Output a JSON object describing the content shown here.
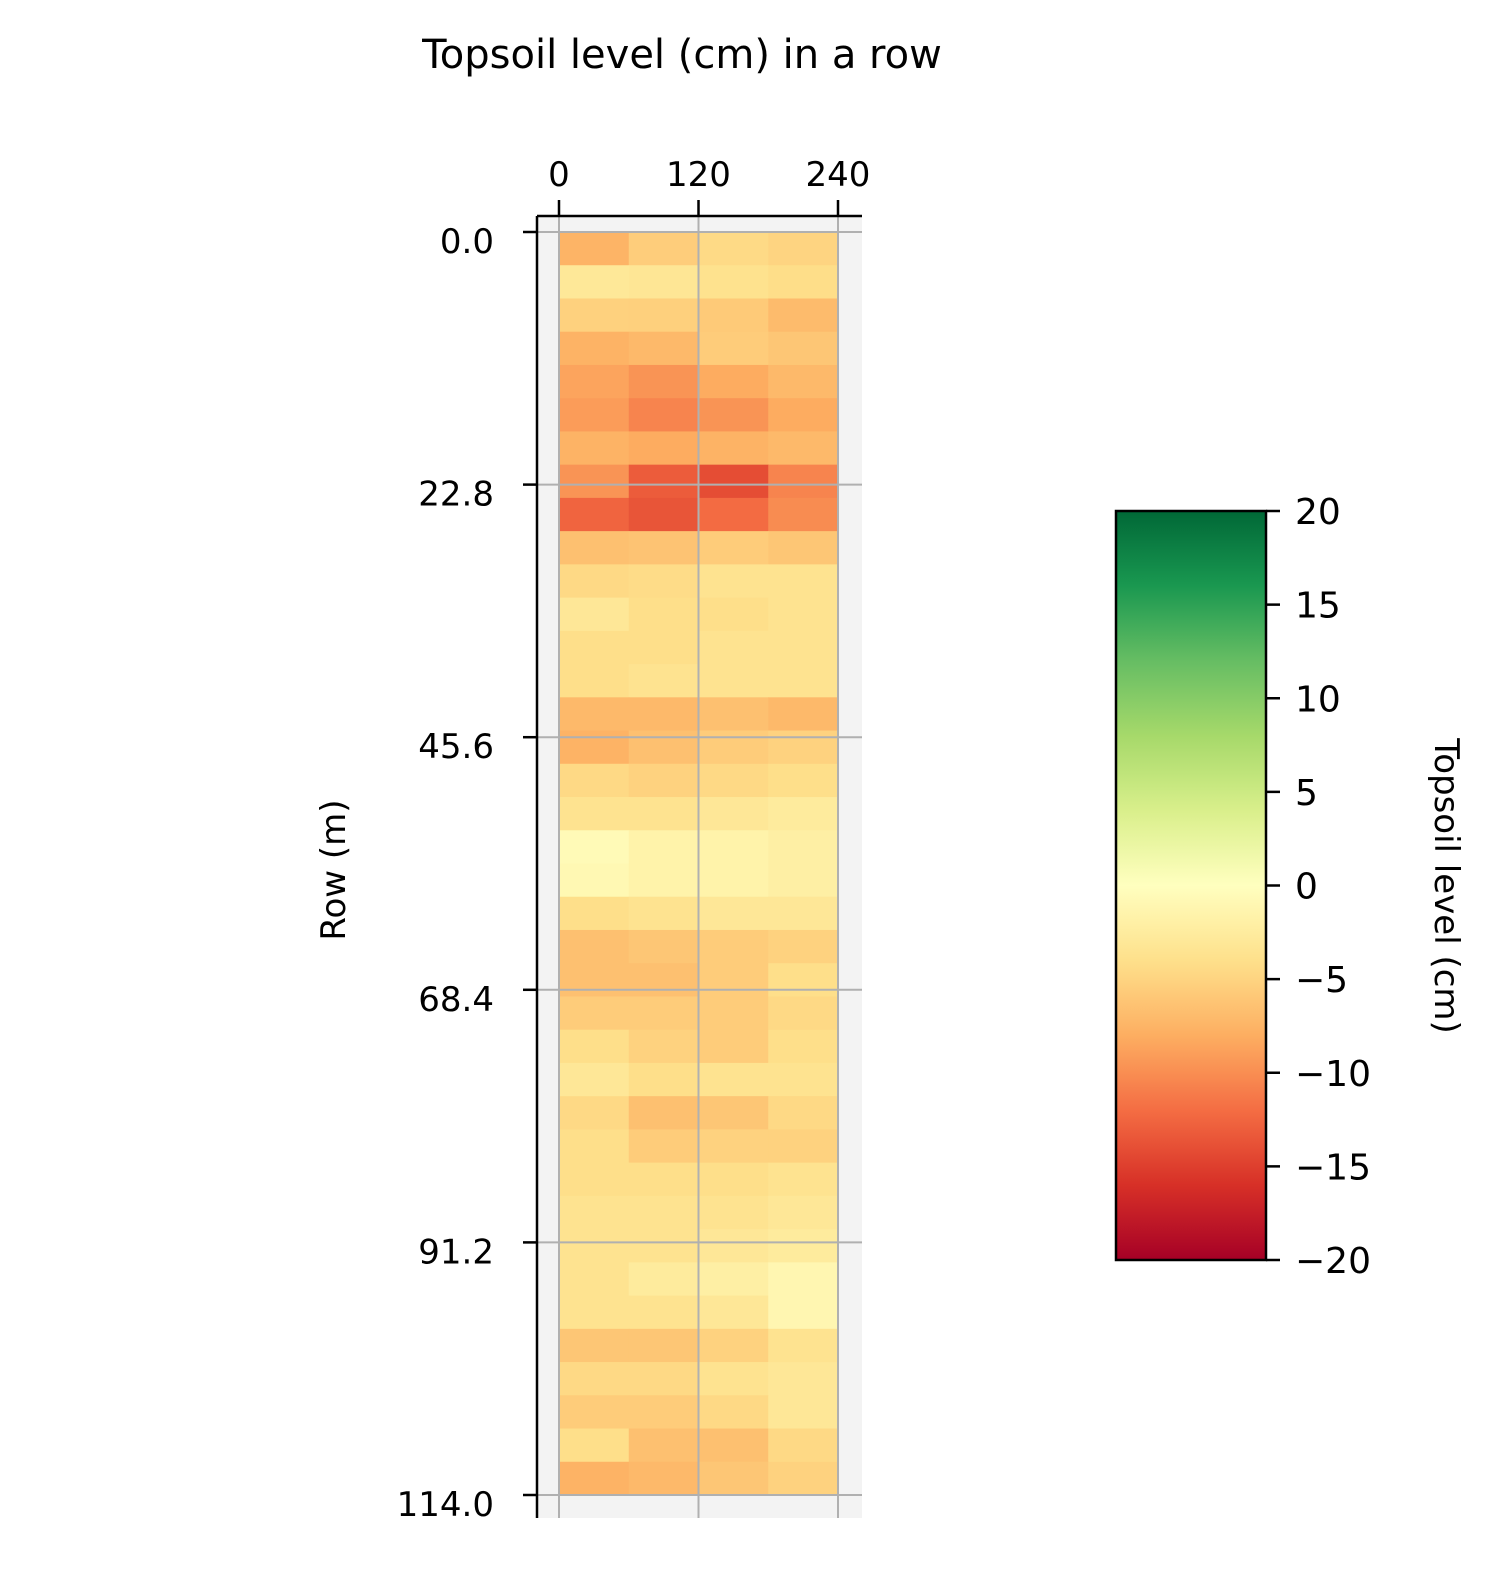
{
  "chart_data": {
    "type": "heatmap",
    "title": "Topsoil level (cm) in a row",
    "ylabel": "Row (m)",
    "x_ticks": [
      "0",
      "120",
      "240"
    ],
    "y_ticks": [
      "0.0",
      "22.8",
      "45.6",
      "68.4",
      "91.2",
      "114.0"
    ],
    "xlim": [
      0,
      240
    ],
    "ylim": [
      0,
      114.0
    ],
    "columns": 4,
    "rows": 38,
    "colormap": "RdYlGn",
    "colorbar": {
      "label": "Topsoil level (cm)",
      "range": [
        -20,
        20
      ],
      "ticks": [
        "20",
        "15",
        "10",
        "5",
        "0",
        "−5",
        "−10",
        "−15",
        "−20"
      ]
    },
    "values": [
      [
        -7.5,
        -5.5,
        -4.5,
        -5.0
      ],
      [
        -3.0,
        -3.2,
        -3.8,
        -4.2
      ],
      [
        -5.2,
        -5.3,
        -5.8,
        -7.0
      ],
      [
        -7.6,
        -7.1,
        -5.6,
        -6.1
      ],
      [
        -8.6,
        -9.6,
        -8.1,
        -7.1
      ],
      [
        -9.1,
        -10.6,
        -9.6,
        -8.1
      ],
      [
        -7.6,
        -8.1,
        -7.6,
        -7.1
      ],
      [
        -9.6,
        -13.1,
        -14.1,
        -10.6
      ],
      [
        -12.6,
        -13.6,
        -12.1,
        -10.1
      ],
      [
        -6.6,
        -6.3,
        -5.6,
        -6.1
      ],
      [
        -4.6,
        -4.3,
        -3.6,
        -3.6
      ],
      [
        -3.1,
        -4.1,
        -4.1,
        -3.6
      ],
      [
        -4.1,
        -4.1,
        -3.6,
        -3.6
      ],
      [
        -4.1,
        -3.6,
        -3.6,
        -3.6
      ],
      [
        -7.1,
        -7.1,
        -6.6,
        -7.1
      ],
      [
        -7.6,
        -6.6,
        -5.6,
        -5.1
      ],
      [
        -4.6,
        -5.1,
        -4.6,
        -4.1
      ],
      [
        -3.6,
        -3.6,
        -3.1,
        -2.6
      ],
      [
        -0.6,
        -1.6,
        -1.6,
        -2.1
      ],
      [
        -0.9,
        -1.6,
        -1.6,
        -2.1
      ],
      [
        -4.1,
        -3.6,
        -3.1,
        -3.1
      ],
      [
        -6.6,
        -6.1,
        -5.6,
        -5.1
      ],
      [
        -6.6,
        -6.6,
        -5.6,
        -4.1
      ],
      [
        -5.6,
        -5.6,
        -5.6,
        -4.6
      ],
      [
        -4.1,
        -5.1,
        -5.6,
        -4.1
      ],
      [
        -3.1,
        -4.1,
        -3.6,
        -3.6
      ],
      [
        -4.6,
        -6.6,
        -6.1,
        -4.6
      ],
      [
        -4.1,
        -5.6,
        -5.1,
        -5.1
      ],
      [
        -4.1,
        -4.1,
        -4.1,
        -3.6
      ],
      [
        -3.6,
        -3.6,
        -3.6,
        -3.1
      ],
      [
        -3.6,
        -3.6,
        -3.1,
        -2.6
      ],
      [
        -3.6,
        -2.6,
        -2.1,
        -1.1
      ],
      [
        -3.6,
        -3.6,
        -3.1,
        -1.1
      ],
      [
        -6.1,
        -6.1,
        -5.1,
        -3.6
      ],
      [
        -4.6,
        -4.6,
        -3.6,
        -3.1
      ],
      [
        -5.6,
        -5.6,
        -4.6,
        -3.1
      ],
      [
        -4.1,
        -6.6,
        -6.6,
        -4.6
      ],
      [
        -7.6,
        -7.1,
        -6.1,
        -5.1
      ]
    ]
  }
}
